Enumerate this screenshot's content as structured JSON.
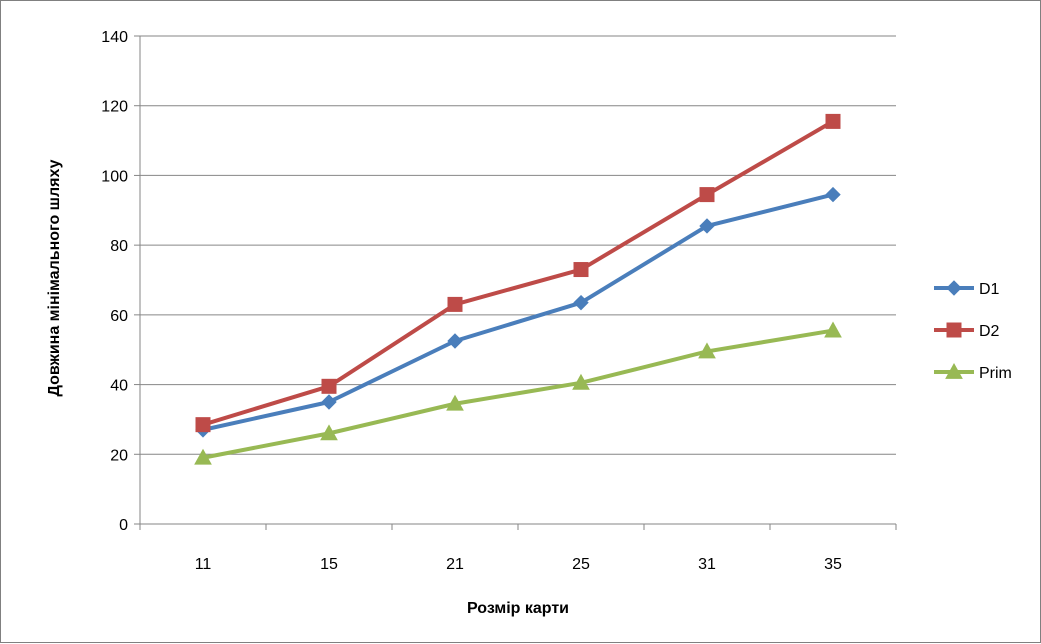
{
  "chart_data": {
    "type": "line",
    "title": "",
    "xlabel": "Розмір карти",
    "ylabel": "Довжина мінімального шляху",
    "categories": [
      "11",
      "15",
      "21",
      "25",
      "31",
      "35"
    ],
    "ylim": [
      0,
      140
    ],
    "yticks": [
      0,
      20,
      40,
      60,
      80,
      100,
      120,
      140
    ],
    "grid": true,
    "legend_position": "right",
    "series": [
      {
        "name": "D1",
        "values": [
          27,
          35,
          52.5,
          63.5,
          85.5,
          94.5
        ],
        "color": "#4A7EBB",
        "marker": "diamond"
      },
      {
        "name": "D2",
        "values": [
          28.5,
          39.5,
          63,
          73,
          94.5,
          115.5
        ],
        "color": "#BE4B48",
        "marker": "square"
      },
      {
        "name": "Prim",
        "values": [
          19,
          26,
          34.5,
          40.5,
          49.5,
          55.5
        ],
        "color": "#98B954",
        "marker": "triangle"
      }
    ]
  }
}
